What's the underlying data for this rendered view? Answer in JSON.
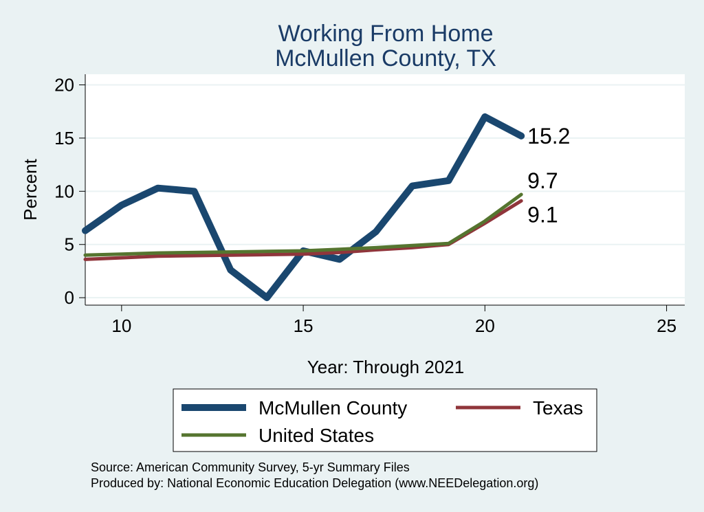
{
  "chart_data": {
    "type": "line",
    "title": [
      "Working From Home",
      "McMullen County, TX"
    ],
    "xlabel": "Year: Through 2021",
    "ylabel": "Percent",
    "xlim": [
      9,
      25.5
    ],
    "ylim": [
      -0.7,
      21
    ],
    "xticks": [
      10,
      15,
      20,
      25
    ],
    "yticks": [
      0,
      5,
      10,
      15,
      20
    ],
    "grid": true,
    "legend_position": "bottom",
    "series": [
      {
        "name": "McMullen County",
        "color": "#1a476f",
        "width": 10,
        "x": [
          9,
          10,
          11,
          12,
          13,
          14,
          15,
          16,
          17,
          18,
          19,
          20,
          21
        ],
        "values": [
          6.3,
          8.7,
          10.3,
          10.0,
          2.6,
          0.0,
          4.4,
          3.6,
          6.2,
          10.5,
          11.0,
          17.0,
          15.2
        ],
        "end_label": "15.2"
      },
      {
        "name": "Texas",
        "color": "#90353b",
        "width": 5,
        "x": [
          9,
          10,
          11,
          12,
          13,
          14,
          15,
          16,
          17,
          18,
          19,
          20,
          21
        ],
        "values": [
          3.6,
          3.75,
          3.9,
          3.95,
          4.0,
          4.05,
          4.1,
          4.25,
          4.5,
          4.7,
          5.0,
          7.0,
          9.1
        ],
        "end_label": "9.1"
      },
      {
        "name": "United States",
        "color": "#55752f",
        "width": 5,
        "x": [
          9,
          10,
          11,
          12,
          13,
          14,
          15,
          16,
          17,
          18,
          19,
          20,
          21
        ],
        "values": [
          4.0,
          4.1,
          4.2,
          4.25,
          4.3,
          4.35,
          4.4,
          4.55,
          4.7,
          4.9,
          5.1,
          7.2,
          9.7
        ],
        "end_label": "9.7"
      }
    ],
    "source_lines": [
      "Source: American Community Survey, 5-yr Summary Files",
      "Produced by: National Economic Education Delegation (www.NEEDelegation.org)"
    ]
  }
}
